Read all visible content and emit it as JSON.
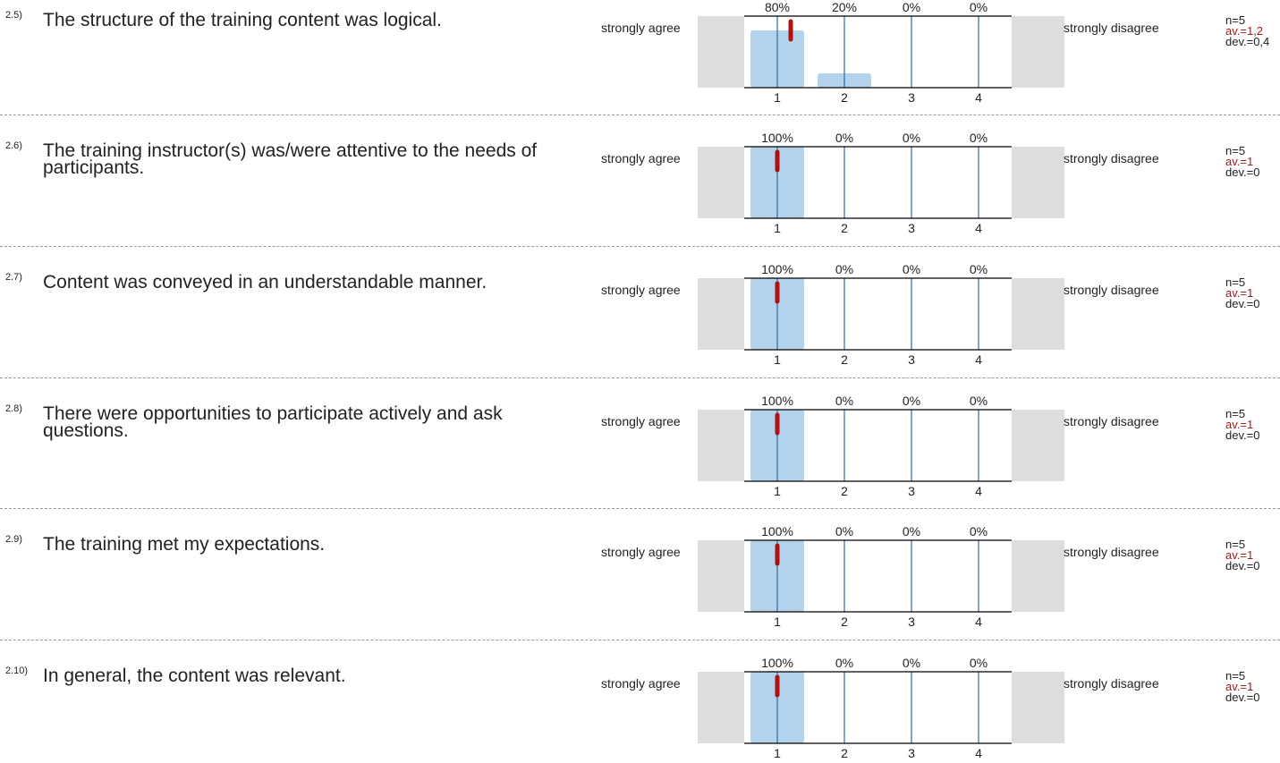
{
  "scale": {
    "left_label": "strongly agree",
    "right_label": "strongly disagree",
    "categories": [
      "1",
      "2",
      "3",
      "4"
    ]
  },
  "colors": {
    "bar": "#b3d3ec",
    "gridline": "#2e6aa0",
    "mean_marker": "#b01111",
    "side_panel": "#dddddd",
    "axis": "#000000",
    "average_text": "#a31a1a"
  },
  "questions": [
    {
      "number": "2.5)",
      "text": "The structure of the training content was logical.",
      "n": "n=5",
      "average": "av.=1,2",
      "deviation": "dev.=0,4"
    },
    {
      "number": "2.6)",
      "text": "The training instructor(s) was/were attentive to the needs of participants.",
      "n": "n=5",
      "average": "av.=1",
      "deviation": "dev.=0"
    },
    {
      "number": "2.7)",
      "text": "Content was conveyed in an understandable manner.",
      "n": "n=5",
      "average": "av.=1",
      "deviation": "dev.=0"
    },
    {
      "number": "2.8)",
      "text": "There were opportunities to participate actively and ask questions.",
      "n": "n=5",
      "average": "av.=1",
      "deviation": "dev.=0"
    },
    {
      "number": "2.9)",
      "text": "The training met my expectations.",
      "n": "n=5",
      "average": "av.=1",
      "deviation": "dev.=0"
    },
    {
      "number": "2.10)",
      "text": "In general, the content was relevant.",
      "n": "n=5",
      "average": "av.=1",
      "deviation": "dev.=0"
    }
  ],
  "chart_data": [
    {
      "type": "bar",
      "categories": [
        "1",
        "2",
        "3",
        "4"
      ],
      "values": [
        80,
        20,
        0,
        0
      ],
      "value_labels": [
        "80%",
        "20%",
        "0%",
        "0%"
      ],
      "mean": 1.2,
      "ylim": [
        0,
        100
      ]
    },
    {
      "type": "bar",
      "categories": [
        "1",
        "2",
        "3",
        "4"
      ],
      "values": [
        100,
        0,
        0,
        0
      ],
      "value_labels": [
        "100%",
        "0%",
        "0%",
        "0%"
      ],
      "mean": 1,
      "ylim": [
        0,
        100
      ]
    },
    {
      "type": "bar",
      "categories": [
        "1",
        "2",
        "3",
        "4"
      ],
      "values": [
        100,
        0,
        0,
        0
      ],
      "value_labels": [
        "100%",
        "0%",
        "0%",
        "0%"
      ],
      "mean": 1,
      "ylim": [
        0,
        100
      ]
    },
    {
      "type": "bar",
      "categories": [
        "1",
        "2",
        "3",
        "4"
      ],
      "values": [
        100,
        0,
        0,
        0
      ],
      "value_labels": [
        "100%",
        "0%",
        "0%",
        "0%"
      ],
      "mean": 1,
      "ylim": [
        0,
        100
      ]
    },
    {
      "type": "bar",
      "categories": [
        "1",
        "2",
        "3",
        "4"
      ],
      "values": [
        100,
        0,
        0,
        0
      ],
      "value_labels": [
        "100%",
        "0%",
        "0%",
        "0%"
      ],
      "mean": 1,
      "ylim": [
        0,
        100
      ]
    },
    {
      "type": "bar",
      "categories": [
        "1",
        "2",
        "3",
        "4"
      ],
      "values": [
        100,
        0,
        0,
        0
      ],
      "value_labels": [
        "100%",
        "0%",
        "0%",
        "0%"
      ],
      "mean": 1,
      "ylim": [
        0,
        100
      ]
    }
  ]
}
